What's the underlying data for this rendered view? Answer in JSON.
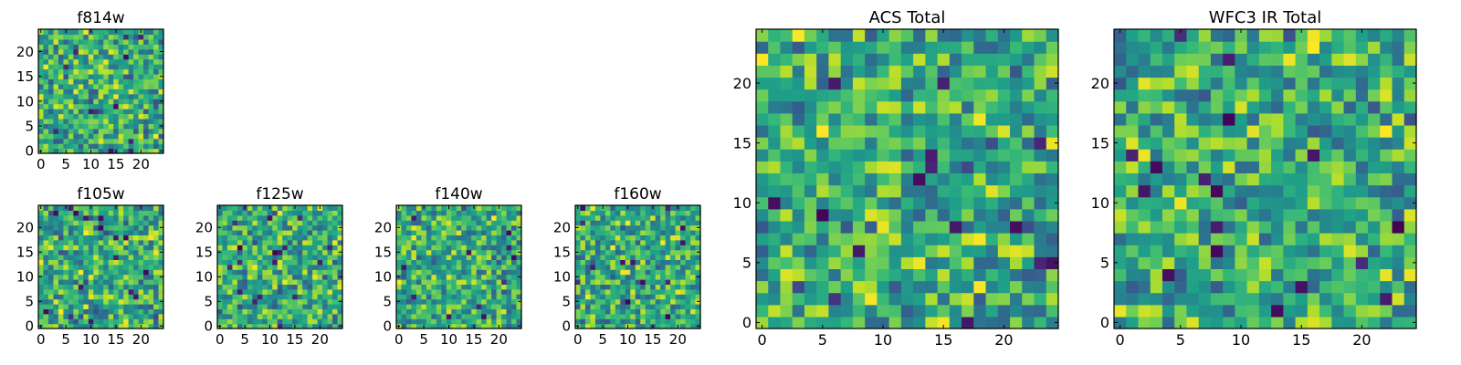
{
  "chart_data": [
    {
      "type": "heatmap",
      "title": "f814w",
      "xticks": [
        "0",
        "5",
        "10",
        "15",
        "20"
      ],
      "yticks": [
        "0",
        "5",
        "10",
        "15",
        "20"
      ],
      "xlim": [
        0,
        24
      ],
      "ylim": [
        0,
        24
      ],
      "colormap": "viridis"
    },
    {
      "type": "heatmap",
      "title": "f105w",
      "xticks": [
        "0",
        "5",
        "10",
        "15",
        "20"
      ],
      "yticks": [
        "0",
        "5",
        "10",
        "15",
        "20"
      ],
      "xlim": [
        0,
        24
      ],
      "ylim": [
        0,
        24
      ],
      "colormap": "viridis"
    },
    {
      "type": "heatmap",
      "title": "f125w",
      "xticks": [
        "0",
        "5",
        "10",
        "15",
        "20"
      ],
      "yticks": [
        "0",
        "5",
        "10",
        "15",
        "20"
      ],
      "xlim": [
        0,
        24
      ],
      "ylim": [
        0,
        24
      ],
      "colormap": "viridis"
    },
    {
      "type": "heatmap",
      "title": "f140w",
      "xticks": [
        "0",
        "5",
        "10",
        "15",
        "20"
      ],
      "yticks": [
        "0",
        "5",
        "10",
        "15",
        "20"
      ],
      "xlim": [
        0,
        24
      ],
      "ylim": [
        0,
        24
      ],
      "colormap": "viridis"
    },
    {
      "type": "heatmap",
      "title": "f160w",
      "xticks": [
        "0",
        "5",
        "10",
        "15",
        "20"
      ],
      "yticks": [
        "0",
        "5",
        "10",
        "15",
        "20"
      ],
      "xlim": [
        0,
        24
      ],
      "ylim": [
        0,
        24
      ],
      "colormap": "viridis"
    },
    {
      "type": "heatmap",
      "title": "ACS Total",
      "xticks": [
        "0",
        "5",
        "10",
        "15",
        "20"
      ],
      "yticks": [
        "0",
        "5",
        "10",
        "15",
        "20"
      ],
      "xlim": [
        0,
        24
      ],
      "ylim": [
        0,
        24
      ],
      "colormap": "viridis"
    },
    {
      "type": "heatmap",
      "title": "WFC3 IR Total",
      "xticks": [
        "0",
        "5",
        "10",
        "15",
        "20"
      ],
      "yticks": [
        "0",
        "5",
        "10",
        "15",
        "20"
      ],
      "xlim": [
        0,
        24
      ],
      "ylim": [
        0,
        24
      ],
      "colormap": "viridis"
    }
  ]
}
